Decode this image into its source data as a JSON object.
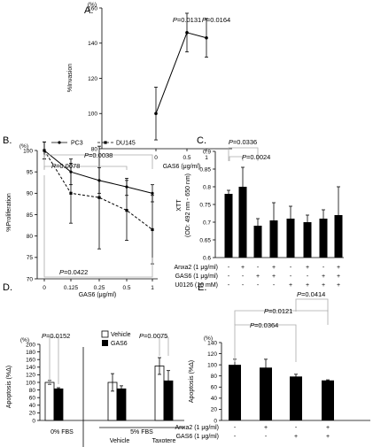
{
  "chart_data": [
    {
      "id": "A",
      "type": "line",
      "panel_label": "A.",
      "unit_label": "(%)",
      "ylabel": "%Invasion",
      "xlabel": "GAS6 (μg/ml)",
      "x": [
        "0",
        "0.5",
        "1"
      ],
      "values": [
        100,
        146,
        143
      ],
      "err": [
        15,
        11,
        11
      ],
      "ylim": [
        80,
        160
      ],
      "yticks": [
        "80",
        "100",
        "120",
        "140",
        "160"
      ],
      "annotations": [
        {
          "p": "P",
          "v": "=0.0131",
          "at": "0.5"
        },
        {
          "p": "P",
          "v": "=0.0164",
          "at": "1"
        }
      ]
    },
    {
      "id": "B",
      "type": "line",
      "panel_label": "B.",
      "unit_label": "(%)",
      "ylabel": "%Proliferation",
      "xlabel": "GAS6 (μg/ml)",
      "x": [
        "0",
        "0.125",
        "0.25",
        "0.5",
        "1"
      ],
      "series": [
        {
          "name": "PC3",
          "style": "solid",
          "values": [
            100,
            95,
            93,
            91.5,
            90
          ],
          "err": [
            2,
            3,
            3,
            2,
            2
          ]
        },
        {
          "name": "DU145",
          "style": "dashed",
          "values": [
            100,
            90,
            89,
            86,
            81.5
          ],
          "err": [
            2,
            7,
            12,
            7,
            8
          ]
        }
      ],
      "ylim": [
        70,
        100
      ],
      "yticks": [
        "70",
        "75",
        "80",
        "85",
        "90",
        "95",
        "100"
      ],
      "legend_placement": "top",
      "annotations": [
        {
          "p": "P",
          "v": "=0.0038"
        },
        {
          "p": "P",
          "v": "=0.0078"
        },
        {
          "p": "P",
          "v": "=0.0422"
        }
      ]
    },
    {
      "id": "C",
      "type": "bar",
      "panel_label": "C.",
      "ylabel": "XTT",
      "ylabel2": "(OD: 492 nm - 650 nm)",
      "values": [
        0.78,
        0.8,
        0.69,
        0.705,
        0.71,
        0.7,
        0.71,
        0.72
      ],
      "err": [
        0.01,
        0.055,
        0.02,
        0.05,
        0.035,
        0.02,
        0.025,
        0.08
      ],
      "ylim": [
        0.6,
        0.9
      ],
      "yticks": [
        "0.6",
        "0.65",
        "0.7",
        "0.75",
        "0.8",
        "0.85",
        "0.9"
      ],
      "conditions": [
        {
          "label": "Anxa2 (1 μg/ml)",
          "signs": [
            "-",
            "+",
            "-",
            "+",
            "-",
            "+",
            "-",
            "+"
          ]
        },
        {
          "label": "GAS6 (1 μg/ml)",
          "signs": [
            "-",
            "-",
            "+",
            "+",
            "-",
            "-",
            "+",
            "+"
          ]
        },
        {
          "label": "U0126 (10 mM)",
          "signs": [
            "-",
            "-",
            "-",
            "-",
            "+",
            "+",
            "+",
            "+"
          ]
        }
      ],
      "annotations": [
        {
          "p": "P",
          "v": "=0.0336"
        },
        {
          "p": "P",
          "v": "=0.0024"
        }
      ]
    },
    {
      "id": "D",
      "type": "bar",
      "panel_label": "D.",
      "unit_label": "(%)",
      "ylabel": "Apoptosis (%Δ)",
      "series": [
        {
          "name": "Vehicle",
          "fill": "#ffffff",
          "values": [
            100,
            100,
            143
          ],
          "err": [
            5,
            23,
            22
          ]
        },
        {
          "name": "GAS6",
          "fill": "#000000",
          "values": [
            83,
            83,
            104
          ],
          "err": [
            3,
            8,
            27
          ]
        }
      ],
      "ylim": [
        0,
        200
      ],
      "yticks": [
        "0",
        "20",
        "40",
        "60",
        "80",
        "100",
        "120",
        "140",
        "160",
        "180",
        "200"
      ],
      "groups": [
        "0% FBS",
        "5% FBS"
      ],
      "subgroups": [
        "Vehicle",
        "Taxotere"
      ],
      "legend_placement": "top-center",
      "annotations": [
        {
          "p": "P",
          "v": "=0.0152"
        },
        {
          "p": "P",
          "v": "=0.0075"
        }
      ]
    },
    {
      "id": "E",
      "type": "bar",
      "panel_label": "E.",
      "unit_label": "(%)",
      "ylabel": "Apoptosis (%Δ)",
      "values": [
        100,
        95,
        79,
        72
      ],
      "err": [
        10,
        15,
        4,
        1
      ],
      "ylim": [
        0,
        140
      ],
      "yticks": [
        "0",
        "20",
        "40",
        "60",
        "80",
        "100",
        "120",
        "140"
      ],
      "conditions": [
        {
          "label": "Anxa2 (1 μg/ml)",
          "signs": [
            "-",
            "+",
            "-",
            "+"
          ]
        },
        {
          "label": "GAS6 (1 μg/ml)",
          "signs": [
            "-",
            "-",
            "+",
            "+"
          ]
        }
      ],
      "annotations": [
        {
          "p": "P",
          "v": "=0.0364"
        },
        {
          "p": "P",
          "v": "=0.0121"
        },
        {
          "p": "P",
          "v": "=0.0414"
        }
      ]
    }
  ]
}
